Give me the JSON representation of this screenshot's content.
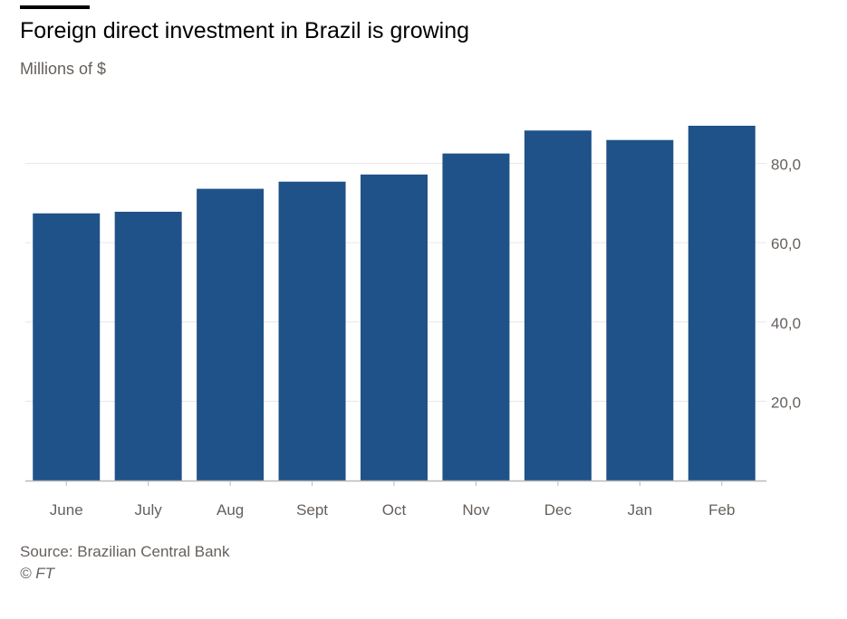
{
  "header": {
    "title": "Foreign direct investment in Brazil is growing",
    "subtitle": "Millions of $"
  },
  "footer": {
    "source": "Source: Brazilian Central Bank",
    "credit": "© FT"
  },
  "colors": {
    "bar": "#1f5289",
    "grid": "#e8e6e4",
    "axis": "#bdb8b4",
    "tick_text": "#66605c"
  },
  "chart_data": {
    "type": "bar",
    "title": "Foreign direct investment in Brazil is growing",
    "ylabel": "Millions of $",
    "categories": [
      "June",
      "July",
      "Aug",
      "Sept",
      "Oct",
      "Nov",
      "Dec",
      "Jan",
      "Feb"
    ],
    "values": [
      67.4,
      67.8,
      73.6,
      75.4,
      77.2,
      82.5,
      88.3,
      85.9,
      89.5
    ],
    "ylim": [
      0,
      92
    ],
    "yticks": [
      20,
      40,
      60,
      80
    ],
    "ytick_labels": [
      "20,0",
      "40,0",
      "60,0",
      "80,0"
    ],
    "y_axis_side": "right",
    "grid": true,
    "legend": "none"
  }
}
